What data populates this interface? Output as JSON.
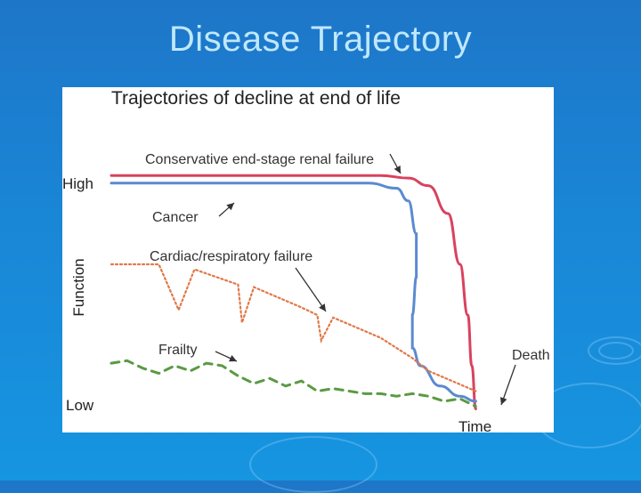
{
  "slide": {
    "title": "Disease Trajectory"
  },
  "chart_data": {
    "type": "line",
    "title": "Trajectories of decline at end of life",
    "xlabel": "Time",
    "ylabel": "Function",
    "y_tick_labels": {
      "high": "High",
      "low": "Low"
    },
    "end_label": "Death",
    "xlim": [
      0,
      100
    ],
    "ylim": [
      0,
      100
    ],
    "series": [
      {
        "name": "Conservative end-stage renal failure",
        "color": "#d9425e",
        "style": "solid",
        "x": [
          0,
          68,
          75,
          80,
          85,
          88,
          90,
          91,
          92
        ],
        "y": [
          95,
          95,
          94,
          91,
          80,
          60,
          40,
          20,
          3
        ]
      },
      {
        "name": "Cancer",
        "color": "#5b8ad0",
        "style": "solid",
        "x": [
          0,
          65,
          72,
          75,
          77,
          77,
          76,
          76,
          78,
          83,
          88,
          92
        ],
        "y": [
          92,
          92,
          90,
          85,
          72,
          55,
          40,
          27,
          20,
          12,
          8,
          6
        ]
      },
      {
        "name": "Cardiac/respiratory failure",
        "color": "#e0794a",
        "style": "dotted",
        "x": [
          0,
          12,
          17,
          21,
          32,
          33,
          36,
          48,
          52,
          53,
          56,
          68,
          76,
          80,
          92
        ],
        "y": [
          60,
          60,
          42,
          58,
          52,
          37,
          51,
          43,
          40,
          30,
          39,
          31,
          23,
          18,
          10
        ]
      },
      {
        "name": "Frailty",
        "color": "#5a9a44",
        "style": "dashed",
        "x": [
          0,
          4,
          8,
          12,
          16,
          20,
          24,
          28,
          32,
          36,
          40,
          44,
          48,
          52,
          56,
          60,
          64,
          68,
          72,
          76,
          80,
          84,
          88,
          92
        ],
        "y": [
          21,
          22,
          19,
          17,
          20,
          18,
          21,
          20,
          16,
          13,
          15,
          12,
          14,
          10,
          11,
          10,
          9,
          9,
          8,
          9,
          8,
          6,
          7,
          4
        ]
      }
    ]
  }
}
